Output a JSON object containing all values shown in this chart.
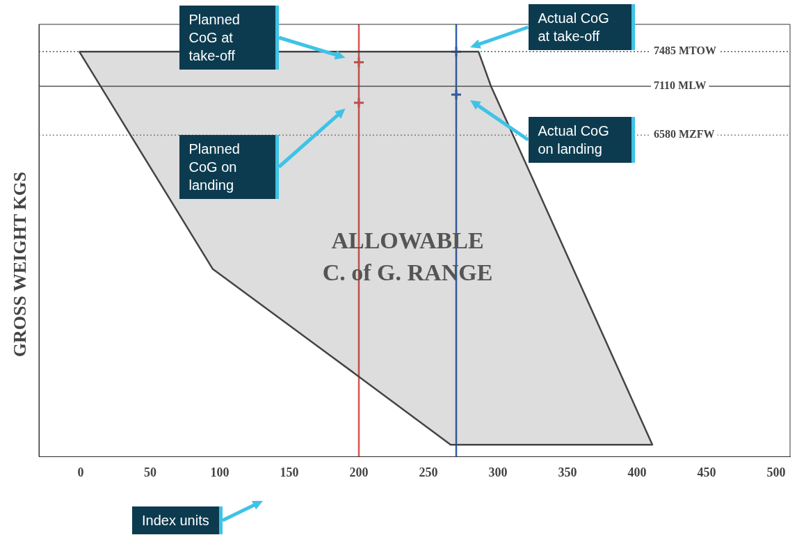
{
  "chart_data": {
    "type": "area",
    "ylabel": "GROSS WEIGHT KGS",
    "xlabel": "Index units",
    "xlim": [
      -30,
      510
    ],
    "xticks": [
      0,
      50,
      100,
      150,
      200,
      250,
      300,
      350,
      400,
      450,
      500
    ],
    "ylim": [
      3100,
      7780
    ],
    "tick_labels": "x",
    "legend": false,
    "grid": false,
    "series": [
      {
        "color": "#444444",
        "x": [
          -1,
          286,
          295,
          411,
          266,
          197,
          95,
          -1
        ],
        "values": [
          7485,
          7485,
          7110,
          3230,
          3230,
          4000,
          5130,
          7485
        ]
      },
      {
        "type": "scatter",
        "marker": "cross",
        "color": "#d9534f",
        "x": [
          200,
          200
        ],
        "values": [
          7370,
          6930
        ]
      },
      {
        "type": "scatter",
        "marker": "cross",
        "color": "#2f5fae",
        "x": [
          270,
          270
        ],
        "values": [
          7485,
          7020
        ]
      }
    ],
    "ref_lines": [
      {
        "axis": "x",
        "value": 200,
        "color": "#d9534f"
      },
      {
        "axis": "x",
        "value": 270,
        "color": "#2f5fae"
      },
      {
        "axis": "y",
        "value": 7485,
        "label": "7485 MTOW",
        "color": "#555555",
        "line_style": "dotted"
      },
      {
        "axis": "y",
        "value": 7110,
        "label": "7110 MLW",
        "color": "#555555",
        "line_style": "solid"
      },
      {
        "axis": "y",
        "value": 6580,
        "label": "6580 MZFW",
        "color": "#888888",
        "line_style": "dotted"
      }
    ],
    "annotations": [
      "Planned CoG at take-off",
      "Actual CoG at take-off",
      "Planned CoG on landing",
      "Actual CoG on landing",
      "ALLOWABLE C. of G. RANGE"
    ]
  }
}
